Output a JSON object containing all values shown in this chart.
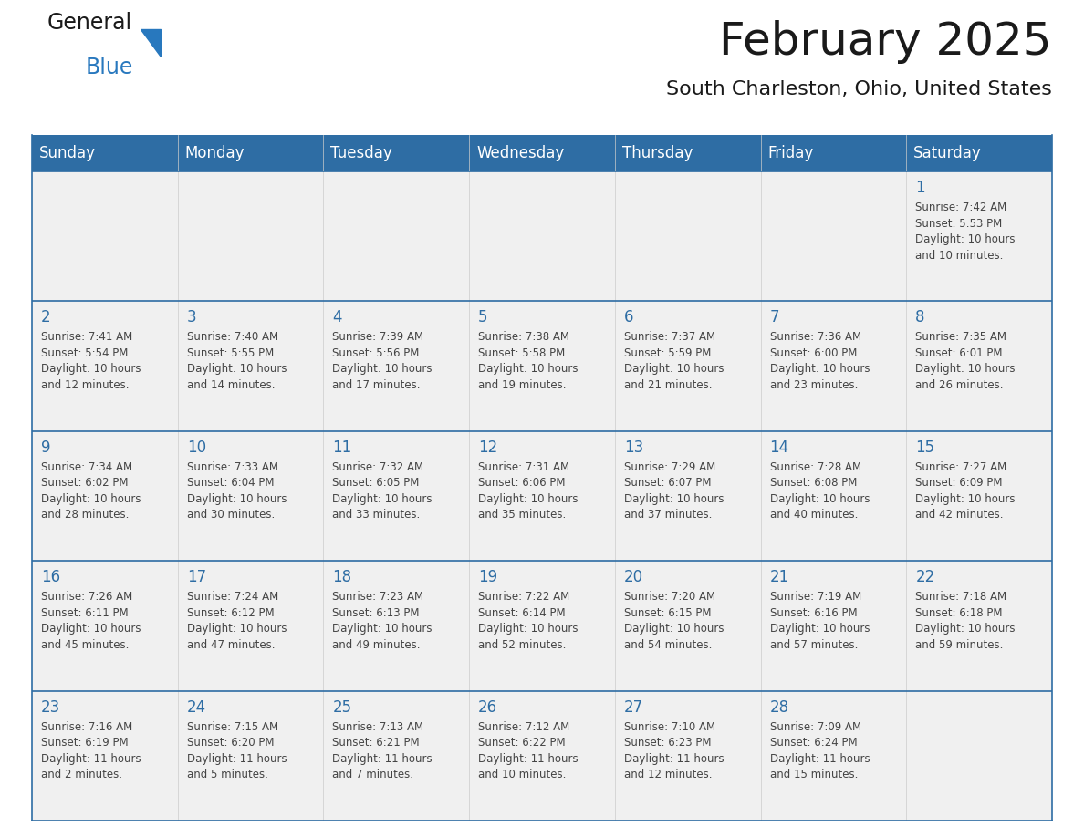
{
  "title": "February 2025",
  "subtitle": "South Charleston, Ohio, United States",
  "days_of_week": [
    "Sunday",
    "Monday",
    "Tuesday",
    "Wednesday",
    "Thursday",
    "Friday",
    "Saturday"
  ],
  "header_bg": "#2E6DA4",
  "header_text_color": "#FFFFFF",
  "cell_bg": "#F0F0F0",
  "grid_line_color": "#2E6DA4",
  "day_number_color": "#2E6DA4",
  "cell_text_color": "#444444",
  "title_color": "#1a1a1a",
  "subtitle_color": "#1a1a1a",
  "logo_black": "#1a1a1a",
  "logo_blue": "#2878BE",
  "calendar_data": [
    [
      null,
      null,
      null,
      null,
      null,
      null,
      {
        "day": 1,
        "sunrise": "7:42 AM",
        "sunset": "5:53 PM",
        "daylight": "10 hours\nand 10 minutes."
      }
    ],
    [
      {
        "day": 2,
        "sunrise": "7:41 AM",
        "sunset": "5:54 PM",
        "daylight": "10 hours\nand 12 minutes."
      },
      {
        "day": 3,
        "sunrise": "7:40 AM",
        "sunset": "5:55 PM",
        "daylight": "10 hours\nand 14 minutes."
      },
      {
        "day": 4,
        "sunrise": "7:39 AM",
        "sunset": "5:56 PM",
        "daylight": "10 hours\nand 17 minutes."
      },
      {
        "day": 5,
        "sunrise": "7:38 AM",
        "sunset": "5:58 PM",
        "daylight": "10 hours\nand 19 minutes."
      },
      {
        "day": 6,
        "sunrise": "7:37 AM",
        "sunset": "5:59 PM",
        "daylight": "10 hours\nand 21 minutes."
      },
      {
        "day": 7,
        "sunrise": "7:36 AM",
        "sunset": "6:00 PM",
        "daylight": "10 hours\nand 23 minutes."
      },
      {
        "day": 8,
        "sunrise": "7:35 AM",
        "sunset": "6:01 PM",
        "daylight": "10 hours\nand 26 minutes."
      }
    ],
    [
      {
        "day": 9,
        "sunrise": "7:34 AM",
        "sunset": "6:02 PM",
        "daylight": "10 hours\nand 28 minutes."
      },
      {
        "day": 10,
        "sunrise": "7:33 AM",
        "sunset": "6:04 PM",
        "daylight": "10 hours\nand 30 minutes."
      },
      {
        "day": 11,
        "sunrise": "7:32 AM",
        "sunset": "6:05 PM",
        "daylight": "10 hours\nand 33 minutes."
      },
      {
        "day": 12,
        "sunrise": "7:31 AM",
        "sunset": "6:06 PM",
        "daylight": "10 hours\nand 35 minutes."
      },
      {
        "day": 13,
        "sunrise": "7:29 AM",
        "sunset": "6:07 PM",
        "daylight": "10 hours\nand 37 minutes."
      },
      {
        "day": 14,
        "sunrise": "7:28 AM",
        "sunset": "6:08 PM",
        "daylight": "10 hours\nand 40 minutes."
      },
      {
        "day": 15,
        "sunrise": "7:27 AM",
        "sunset": "6:09 PM",
        "daylight": "10 hours\nand 42 minutes."
      }
    ],
    [
      {
        "day": 16,
        "sunrise": "7:26 AM",
        "sunset": "6:11 PM",
        "daylight": "10 hours\nand 45 minutes."
      },
      {
        "day": 17,
        "sunrise": "7:24 AM",
        "sunset": "6:12 PM",
        "daylight": "10 hours\nand 47 minutes."
      },
      {
        "day": 18,
        "sunrise": "7:23 AM",
        "sunset": "6:13 PM",
        "daylight": "10 hours\nand 49 minutes."
      },
      {
        "day": 19,
        "sunrise": "7:22 AM",
        "sunset": "6:14 PM",
        "daylight": "10 hours\nand 52 minutes."
      },
      {
        "day": 20,
        "sunrise": "7:20 AM",
        "sunset": "6:15 PM",
        "daylight": "10 hours\nand 54 minutes."
      },
      {
        "day": 21,
        "sunrise": "7:19 AM",
        "sunset": "6:16 PM",
        "daylight": "10 hours\nand 57 minutes."
      },
      {
        "day": 22,
        "sunrise": "7:18 AM",
        "sunset": "6:18 PM",
        "daylight": "10 hours\nand 59 minutes."
      }
    ],
    [
      {
        "day": 23,
        "sunrise": "7:16 AM",
        "sunset": "6:19 PM",
        "daylight": "11 hours\nand 2 minutes."
      },
      {
        "day": 24,
        "sunrise": "7:15 AM",
        "sunset": "6:20 PM",
        "daylight": "11 hours\nand 5 minutes."
      },
      {
        "day": 25,
        "sunrise": "7:13 AM",
        "sunset": "6:21 PM",
        "daylight": "11 hours\nand 7 minutes."
      },
      {
        "day": 26,
        "sunrise": "7:12 AM",
        "sunset": "6:22 PM",
        "daylight": "11 hours\nand 10 minutes."
      },
      {
        "day": 27,
        "sunrise": "7:10 AM",
        "sunset": "6:23 PM",
        "daylight": "11 hours\nand 12 minutes."
      },
      {
        "day": 28,
        "sunrise": "7:09 AM",
        "sunset": "6:24 PM",
        "daylight": "11 hours\nand 15 minutes."
      },
      null
    ]
  ]
}
